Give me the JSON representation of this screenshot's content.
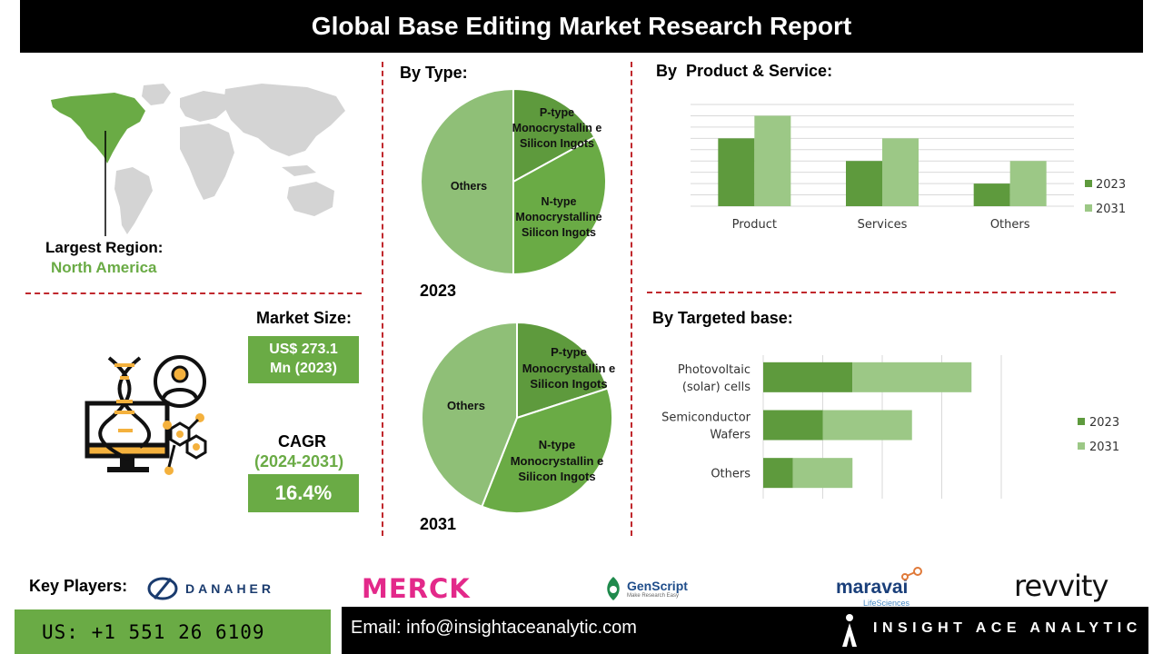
{
  "title": "Global Base Editing Market Research Report",
  "region": {
    "label": "Largest Region:",
    "value": "North America"
  },
  "market_size": {
    "label": "Market Size:",
    "value_line1": "US$ 273.1",
    "value_line2": "Mn (2023)"
  },
  "cagr": {
    "label": "CAGR",
    "period": "(2024-2031)",
    "value": "16.4%"
  },
  "by_type": {
    "title": "By Type:",
    "p_type_2023": "P-type Monocrystallin e Silicon Ingots",
    "n_type_2023": "N-type Monocrystalline Silicon Ingots",
    "others_2023": "Others",
    "p_type_2031": "P-type Monocrystallin e Silicon Ingots",
    "n_type_2031": "N-type Monocrystallin e Silicon Ingots",
    "others_2031": "Others",
    "year_2023": "2023",
    "year_2031": "2031"
  },
  "by_product": {
    "title": "By  Product & Service:"
  },
  "by_targeted": {
    "title": "By Targeted base:"
  },
  "key_players": {
    "label": "Key Players:",
    "danaher": "DANAHER",
    "merck": "MERCK",
    "genscript": "GenScript",
    "genscript_tag": "Make Research Easy",
    "maravai": "maravai",
    "maravai_tag": "LifeSciences",
    "revvity": "revvity"
  },
  "footer": {
    "phone": "US: +1 551 26 6109",
    "email": "Email: info@insightaceanalytic.com",
    "brand": "INSIGHT ACE ANALYTIC"
  },
  "colors": {
    "dark_green": "#5e9a3d",
    "mid_green": "#6aab45",
    "light_green": "#9cc886",
    "pie_light": "#8fbf77",
    "accent_red": "#c0282d",
    "icon_orange": "#f4b13d"
  },
  "chart_data": [
    {
      "type": "pie",
      "name": "By Type 2023",
      "year": "2023",
      "slices": [
        {
          "label": "P-type Monocrystalline Silicon Ingots",
          "value": 17
        },
        {
          "label": "N-type Monocrystalline Silicon Ingots",
          "value": 33
        },
        {
          "label": "Others",
          "value": 50
        }
      ]
    },
    {
      "type": "pie",
      "name": "By Type 2031",
      "year": "2031",
      "slices": [
        {
          "label": "P-type Monocrystalline Silicon Ingots",
          "value": 20
        },
        {
          "label": "N-type Monocrystalline Silicon Ingots",
          "value": 36
        },
        {
          "label": "Others",
          "value": 44
        }
      ]
    },
    {
      "type": "bar",
      "name": "By Product & Service",
      "categories": [
        "Product",
        "Services",
        "Others"
      ],
      "series": [
        {
          "name": "2023",
          "values": [
            3,
            2,
            1
          ]
        },
        {
          "name": "2031",
          "values": [
            4,
            3,
            2
          ]
        }
      ],
      "ylim": [
        0,
        4.5
      ],
      "grid": true,
      "legend": "right"
    },
    {
      "type": "bar",
      "orientation": "horizontal",
      "stacked": true,
      "name": "By Targeted base",
      "categories": [
        "Photovoltaic (solar) cells",
        "Semiconductor Wafers",
        "Others"
      ],
      "category_lines": [
        [
          "Photovoltaic",
          "(solar) cells"
        ],
        [
          "Semiconductor",
          "Wafers"
        ],
        [
          "Others"
        ]
      ],
      "series": [
        {
          "name": "2023",
          "values": [
            3,
            2,
            1
          ]
        },
        {
          "name": "2031",
          "values": [
            4,
            3,
            2
          ]
        }
      ],
      "xlim": [
        0,
        8
      ],
      "grid": true,
      "legend": "right"
    }
  ]
}
